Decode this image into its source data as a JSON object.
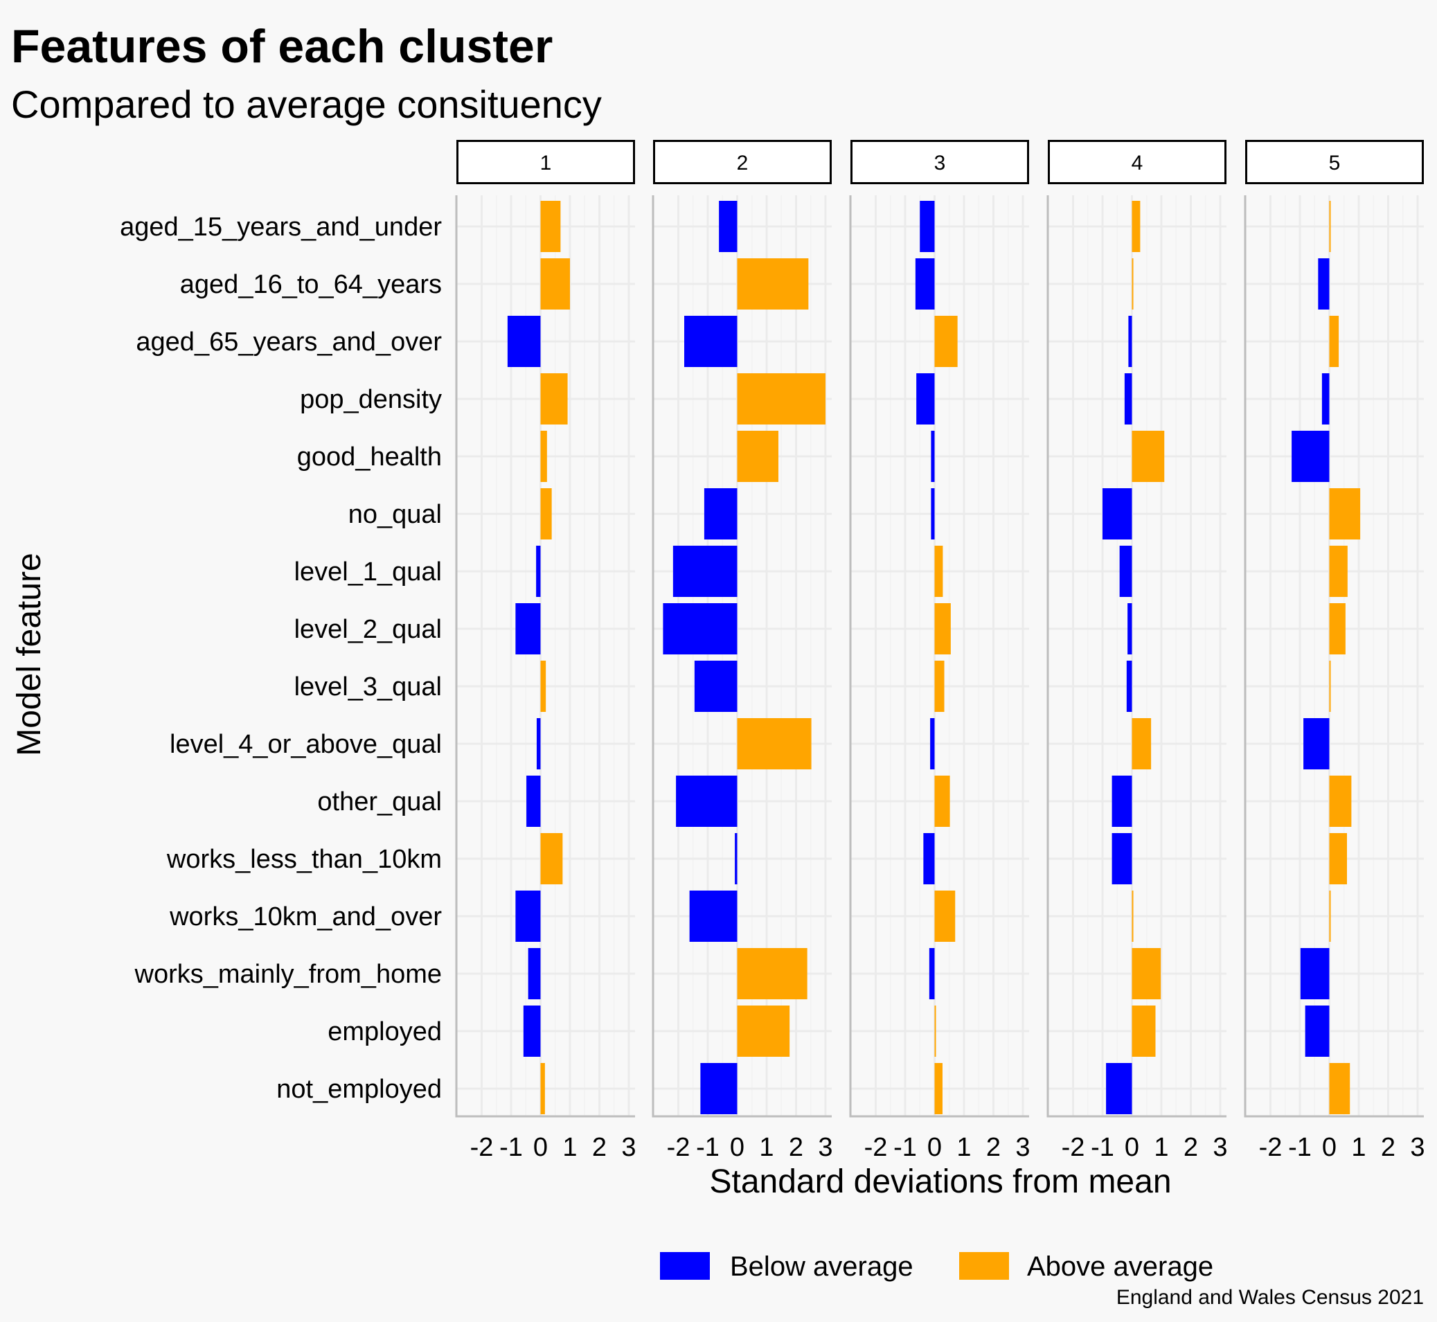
{
  "chart_data": {
    "type": "bar",
    "orientation": "horizontal",
    "title": "Features of each cluster",
    "subtitle": "Compared to average consituency",
    "xlabel": "Standard deviations from mean",
    "ylabel": "Model feature",
    "caption": "England and Wales Census 2021",
    "xlim": [
      -3,
      3.2
    ],
    "xticks": [
      -2,
      -1,
      0,
      1,
      2,
      3
    ],
    "xtick_labels": [
      "-2",
      "-1",
      "0",
      "1",
      "2",
      "3"
    ],
    "grid": true,
    "legend": {
      "position": "bottom",
      "items": [
        {
          "label": "Below average",
          "color": "#0000ff"
        },
        {
          "label": "Above average",
          "color": "#ffa500"
        }
      ]
    },
    "colors": {
      "below": "#0000ff",
      "above": "#ffa500"
    },
    "categories": [
      "aged_15_years_and_under",
      "aged_16_to_64_years",
      "aged_65_years_and_over",
      "pop_density",
      "good_health",
      "no_qual",
      "level_1_qual",
      "level_2_qual",
      "level_3_qual",
      "level_4_or_above_qual",
      "other_qual",
      "works_less_than_10km",
      "works_10km_and_over",
      "works_mainly_from_home",
      "employed",
      "not_employed"
    ],
    "facets": [
      {
        "label": "1",
        "values": [
          0.68,
          1.0,
          -1.12,
          0.92,
          0.22,
          0.38,
          -0.15,
          -0.85,
          0.18,
          -0.13,
          -0.48,
          0.75,
          -0.85,
          -0.42,
          -0.58,
          0.15
        ]
      },
      {
        "label": "2",
        "values": [
          -0.62,
          2.42,
          -1.8,
          3.0,
          1.4,
          -1.12,
          -2.18,
          -2.52,
          -1.45,
          2.52,
          -2.08,
          -0.08,
          -1.62,
          2.38,
          1.78,
          -1.25
        ]
      },
      {
        "label": "3",
        "values": [
          -0.5,
          -0.65,
          0.78,
          -0.62,
          -0.12,
          -0.12,
          0.28,
          0.55,
          0.33,
          -0.15,
          0.52,
          -0.38,
          0.7,
          -0.18,
          0.04,
          0.27
        ]
      },
      {
        "label": "4",
        "values": [
          0.28,
          0.03,
          -0.12,
          -0.25,
          1.1,
          -1.0,
          -0.42,
          -0.15,
          -0.18,
          0.65,
          -0.68,
          -0.68,
          0.04,
          0.98,
          0.8,
          -0.88
        ]
      },
      {
        "label": "5",
        "values": [
          0.04,
          -0.38,
          0.32,
          -0.25,
          -1.28,
          1.05,
          0.62,
          0.55,
          0.03,
          -0.88,
          0.75,
          0.6,
          0.02,
          -0.98,
          -0.82,
          0.7
        ]
      }
    ]
  }
}
